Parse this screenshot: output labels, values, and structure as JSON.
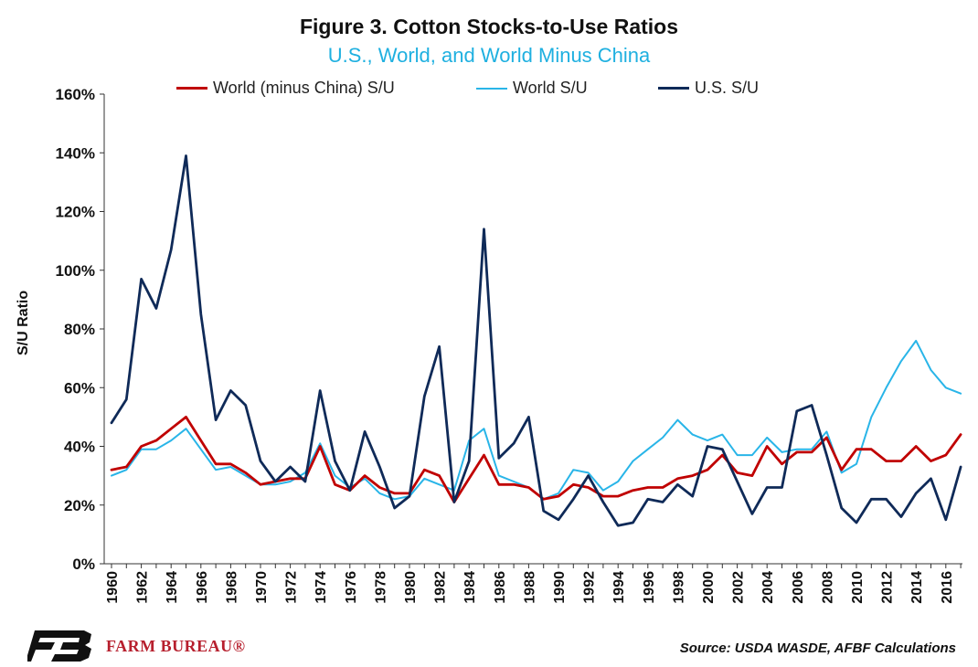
{
  "chart_data": {
    "type": "line",
    "title": "Figure 3. Cotton Stocks-to-Use Ratios",
    "subtitle": "U.S., World, and World Minus China",
    "ylabel": "S/U Ratio",
    "ylim": [
      0,
      160
    ],
    "y_ticks": [
      "0%",
      "20%",
      "40%",
      "60%",
      "80%",
      "100%",
      "120%",
      "140%",
      "160%"
    ],
    "x": [
      1960,
      1961,
      1962,
      1963,
      1964,
      1965,
      1966,
      1967,
      1968,
      1969,
      1970,
      1971,
      1972,
      1973,
      1974,
      1975,
      1976,
      1977,
      1978,
      1979,
      1980,
      1981,
      1982,
      1983,
      1984,
      1985,
      1986,
      1987,
      1988,
      1989,
      1990,
      1991,
      1992,
      1993,
      1994,
      1995,
      1996,
      1997,
      1998,
      1999,
      2000,
      2001,
      2002,
      2003,
      2004,
      2005,
      2006,
      2007,
      2008,
      2009,
      2010,
      2011,
      2012,
      2013,
      2014,
      2015,
      2016,
      2017
    ],
    "x_tick_labels": [
      "1960",
      "1962",
      "1964",
      "1966",
      "1968",
      "1970",
      "1972",
      "1974",
      "1976",
      "1978",
      "1980",
      "1982",
      "1984",
      "1986",
      "1988",
      "1990",
      "1992",
      "1994",
      "1996",
      "1998",
      "2000",
      "2002",
      "2004",
      "2006",
      "2008",
      "2010",
      "2012",
      "2014",
      "2016"
    ],
    "series": [
      {
        "name": "World (minus China) S/U",
        "color": "#c00000",
        "values": [
          32,
          33,
          40,
          42,
          46,
          50,
          42,
          34,
          34,
          31,
          27,
          28,
          29,
          29,
          40,
          27,
          25,
          30,
          26,
          24,
          24,
          32,
          30,
          21,
          29,
          37,
          27,
          27,
          26,
          22,
          23,
          27,
          26,
          23,
          23,
          25,
          26,
          26,
          29,
          30,
          32,
          37,
          31,
          30,
          40,
          34,
          38,
          38,
          43,
          32,
          39,
          39,
          35,
          35,
          40,
          35,
          37,
          44
        ]
      },
      {
        "name": "World S/U",
        "color": "#29b5e8",
        "values": [
          30,
          32,
          39,
          39,
          42,
          46,
          39,
          32,
          33,
          30,
          27,
          27,
          28,
          31,
          41,
          30,
          26,
          29,
          24,
          22,
          23,
          29,
          27,
          25,
          42,
          46,
          30,
          28,
          26,
          22,
          24,
          32,
          31,
          25,
          28,
          35,
          39,
          43,
          49,
          44,
          42,
          44,
          37,
          37,
          43,
          38,
          39,
          39,
          45,
          31,
          34,
          50,
          60,
          69,
          76,
          66,
          60,
          58
        ]
      },
      {
        "name": "U.S. S/U",
        "color": "#0f2a58",
        "values": [
          48,
          56,
          97,
          87,
          107,
          139,
          85,
          49,
          59,
          54,
          35,
          28,
          33,
          28,
          59,
          35,
          25,
          45,
          33,
          19,
          23,
          57,
          74,
          21,
          35,
          114,
          36,
          41,
          50,
          18,
          15,
          22,
          30,
          21,
          13,
          14,
          22,
          21,
          27,
          23,
          40,
          39,
          28,
          17,
          26,
          26,
          52,
          54,
          37,
          19,
          14,
          22,
          22,
          16,
          24,
          29,
          15,
          33
        ]
      }
    ],
    "grid": false,
    "legend_position": "top"
  },
  "source": "Source: USDA WASDE, AFBF Calculations",
  "logo": {
    "text": "FARM BUREAU®",
    "brand_color": "#b7202e"
  }
}
